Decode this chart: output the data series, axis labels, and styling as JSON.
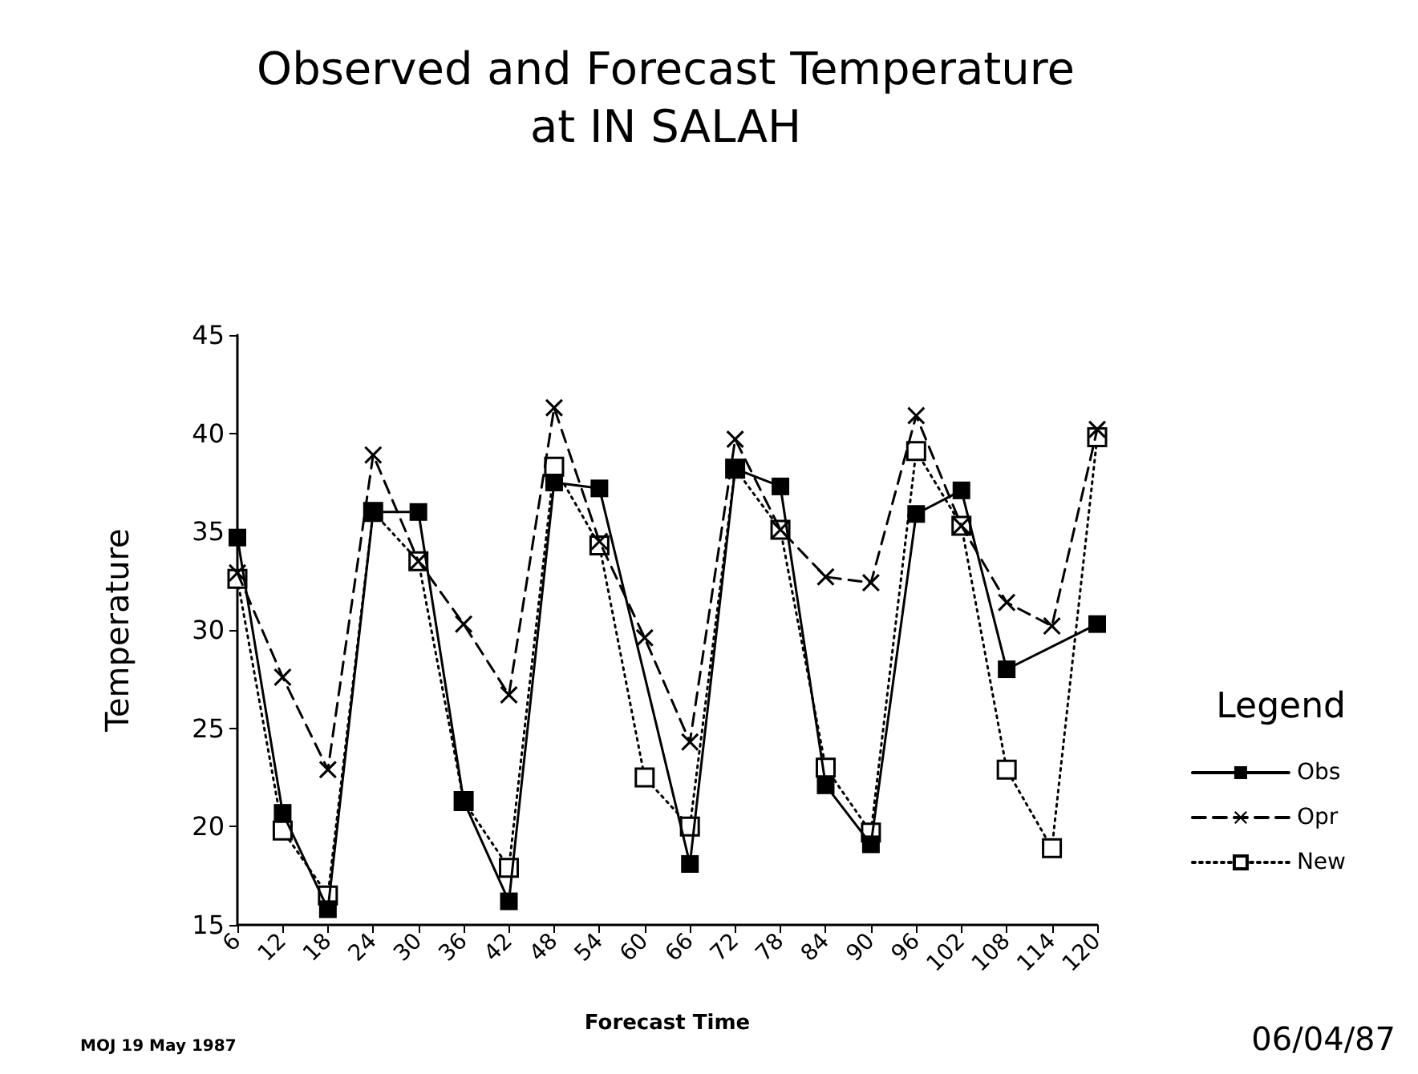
{
  "chart_data": {
    "type": "line",
    "title": "Observed and Forecast Temperature\nat IN SALAH",
    "xlabel": "Forecast Time",
    "ylabel": "Temperature",
    "legend_title": "Legend",
    "categories": [
      "6",
      "12",
      "18",
      "24",
      "30",
      "36",
      "42",
      "48",
      "54",
      "60",
      "66",
      "72",
      "78",
      "84",
      "90",
      "96",
      "102",
      "108",
      "114",
      "120"
    ],
    "ylim": [
      15,
      45
    ],
    "yticks": [
      15,
      20,
      25,
      30,
      35,
      40,
      45
    ],
    "grid": false,
    "legend": "right",
    "series": [
      {
        "name": "Obs",
        "color": "#000000",
        "marker": "square",
        "line_style": "solid",
        "values": [
          34.7,
          20.7,
          15.8,
          36.0,
          36.0,
          21.3,
          16.2,
          37.5,
          37.2,
          null,
          18.1,
          38.2,
          37.3,
          22.1,
          19.1,
          35.9,
          37.1,
          28.0,
          null,
          30.3
        ]
      },
      {
        "name": "Opr",
        "color": "#000000",
        "marker": "cross",
        "line_style": "dashed",
        "values": [
          32.9,
          27.6,
          22.9,
          38.9,
          33.5,
          30.3,
          26.7,
          41.3,
          34.5,
          29.6,
          24.3,
          39.7,
          35.1,
          32.7,
          32.4,
          40.9,
          35.3,
          31.4,
          30.2,
          40.2
        ]
      },
      {
        "name": "New",
        "color": "#000000",
        "marker": "square",
        "colors": [
          "#ffffff",
          "#ffffff",
          "#ffffff",
          "#ffffff",
          "#ffffff",
          "#ffffff",
          "#ffffff",
          "#ffffff",
          "#ffffff",
          "#ffffff",
          "#ffffff",
          "#ffffff",
          "#ffffff",
          "#ffffff",
          "#ffffff",
          "#ffffff",
          "#ffffff",
          "#ffffff",
          "#ffffff",
          "#ffffff"
        ],
        "line_style": "dotted",
        "values": [
          32.6,
          19.8,
          16.5,
          36.0,
          33.5,
          21.3,
          17.9,
          38.3,
          34.3,
          22.5,
          20.0,
          38.2,
          35.1,
          23.0,
          19.7,
          39.1,
          35.3,
          22.9,
          18.9,
          39.8
        ]
      }
    ],
    "annotations": [
      "06/04/87",
      "MOJ 19 May 1987"
    ]
  }
}
